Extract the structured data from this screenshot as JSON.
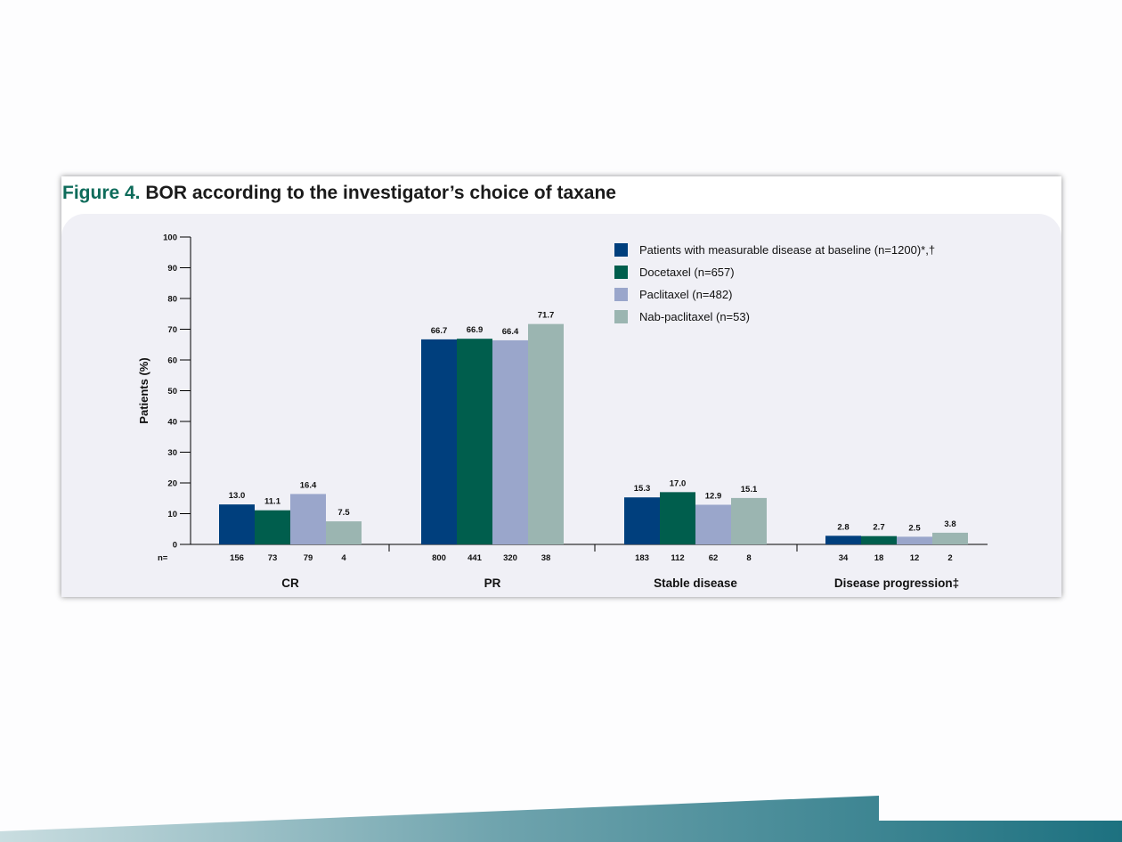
{
  "figure": {
    "label": "Figure 4.",
    "title": "BOR according to the investigator’s choice of taxane"
  },
  "chart_data": {
    "type": "bar",
    "ylabel": "Patients (%)",
    "ylim": [
      0,
      100
    ],
    "yticks": [
      0,
      10,
      20,
      30,
      40,
      50,
      60,
      70,
      80,
      90,
      100
    ],
    "categories": [
      "CR",
      "PR",
      "Stable disease",
      "Disease progression‡"
    ],
    "n_prefix": "n=",
    "legend_position": "top-right",
    "series": [
      {
        "name": "Patients with measurable disease at baseline (n=1200)*,†",
        "color": "#003f7d",
        "values": [
          13.0,
          66.7,
          15.3,
          2.8
        ],
        "labels": [
          "13.0",
          "66.7",
          "15.3",
          "2.8"
        ],
        "n": [
          "156",
          "800",
          "183",
          "34"
        ]
      },
      {
        "name": "Docetaxel (n=657)",
        "color": "#005e4d",
        "values": [
          11.1,
          66.9,
          17.0,
          2.7
        ],
        "labels": [
          "11.1",
          "66.9",
          "17.0",
          "2.7"
        ],
        "n": [
          "73",
          "441",
          "112",
          "18"
        ]
      },
      {
        "name": "Paclitaxel (n=482)",
        "color": "#9aa6cb",
        "values": [
          16.4,
          66.4,
          12.9,
          2.5
        ],
        "labels": [
          "16.4",
          "66.4",
          "12.9",
          "2.5"
        ],
        "n": [
          "79",
          "320",
          "62",
          "12"
        ]
      },
      {
        "name": "Nab-paclitaxel (n=53)",
        "color": "#9bb5b1",
        "values": [
          7.5,
          71.7,
          15.1,
          3.8
        ],
        "labels": [
          "7.5",
          "71.7",
          "15.1",
          "3.8"
        ],
        "n": [
          "4",
          "38",
          "8",
          "2"
        ]
      }
    ]
  }
}
